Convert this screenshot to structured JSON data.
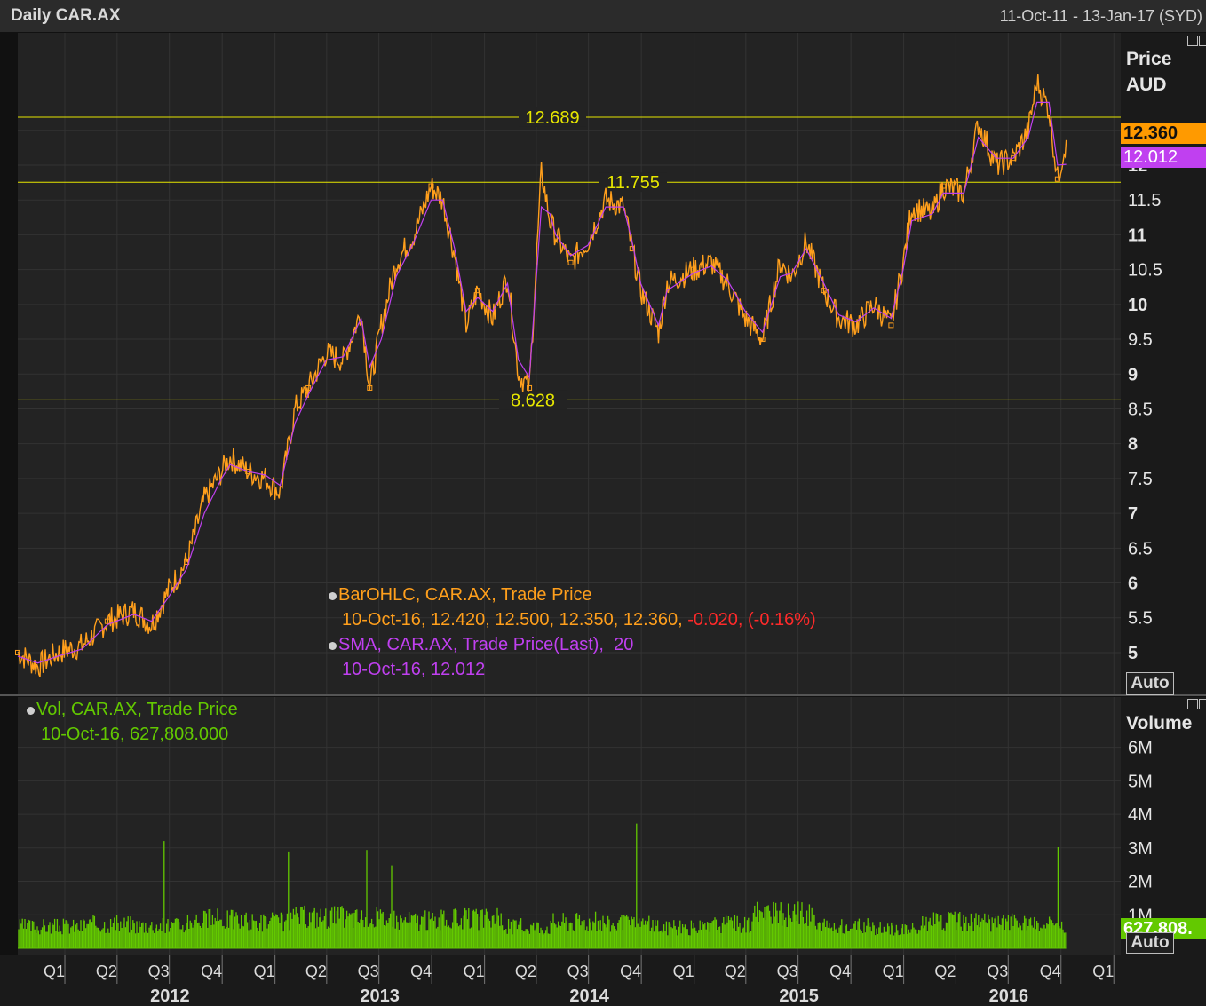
{
  "header": {
    "title": "Daily CAR.AX",
    "range": "11-Oct-11 - 13-Jan-17 (SYD)"
  },
  "colors": {
    "price": "#ff9f1c",
    "sma": "#c040f0",
    "volume": "#63c900",
    "hline": "#e6e600",
    "down": "#ff2a2a"
  },
  "price_axis": {
    "title_line1": "Price",
    "title_line2": "AUD",
    "auto_label": "Auto",
    "last_price_tag": "12.360",
    "sma_tag": "12.012"
  },
  "volume_axis": {
    "title": "Volume",
    "auto_label": "Auto",
    "last_volume_tag": "627,808."
  },
  "legend": {
    "ohlc_title": "BarOHLC, CAR.AX, Trade Price",
    "ohlc_values": "10-Oct-16, 12.420, 12.500, 12.350, 12.360, ",
    "ohlc_change": "-0.020, (-0.16%)",
    "sma_title": "SMA, CAR.AX, Trade Price(Last),  20",
    "sma_values": "10-Oct-16, 12.012",
    "vol_title": "Vol, CAR.AX, Trade Price",
    "vol_values": "10-Oct-16, 627,808.000"
  },
  "chart_data": [
    {
      "type": "line",
      "title": "Daily CAR.AX",
      "ylabel": "Price AUD",
      "ylim": [
        4.4,
        13.9
      ],
      "yticks": [
        "5",
        "5.5",
        "6",
        "6.5",
        "7",
        "7.5",
        "8",
        "8.5",
        "9",
        "9.5",
        "10",
        "10.5",
        "11",
        "11.5",
        "12",
        "12.5"
      ],
      "horizontal_lines": [
        {
          "value": 12.689,
          "label": "12.689"
        },
        {
          "value": 11.755,
          "label": "11.755"
        },
        {
          "value": 8.628,
          "label": "8.628"
        }
      ],
      "x_quarters": [
        "Q1",
        "Q2",
        "Q3",
        "Q4",
        "Q1",
        "Q2",
        "Q3",
        "Q4",
        "Q1",
        "Q2",
        "Q3",
        "Q4",
        "Q1",
        "Q2",
        "Q3",
        "Q4",
        "Q1",
        "Q2",
        "Q3",
        "Q4",
        "Q1"
      ],
      "x_years": [
        "2012",
        "2013",
        "2014",
        "2015",
        "2016"
      ],
      "series": [
        {
          "name": "BarOHLC, CAR.AX, Trade Price",
          "x": [
            "2011-10-11",
            "2011-11-15",
            "2011-12-20",
            "2012-01-31",
            "2012-03-15",
            "2012-04-30",
            "2012-05-31",
            "2012-06-30",
            "2012-07-31",
            "2012-08-31",
            "2012-09-30",
            "2012-10-15",
            "2012-11-15",
            "2012-12-15",
            "2013-01-10",
            "2013-02-05",
            "2013-02-28",
            "2013-03-31",
            "2013-04-30",
            "2013-05-31",
            "2013-06-15",
            "2013-07-05",
            "2013-07-31",
            "2013-08-31",
            "2013-09-30",
            "2013-10-20",
            "2013-11-10",
            "2013-11-30",
            "2013-12-20",
            "2014-01-15",
            "2014-02-10",
            "2014-03-01",
            "2014-03-20",
            "2014-04-10",
            "2014-04-25",
            "2014-05-05",
            "2014-05-31",
            "2014-06-30",
            "2014-07-31",
            "2014-08-31",
            "2014-09-15",
            "2014-09-30",
            "2014-10-31",
            "2014-11-15",
            "2014-12-31",
            "2015-01-31",
            "2015-02-28",
            "2015-03-31",
            "2015-04-30",
            "2015-05-31",
            "2015-06-20",
            "2015-07-15",
            "2015-08-15",
            "2015-09-10",
            "2015-10-10",
            "2015-11-10",
            "2015-12-10",
            "2015-12-31",
            "2016-01-15",
            "2016-02-20",
            "2016-03-10",
            "2016-04-15",
            "2016-05-10",
            "2016-06-10",
            "2016-07-10",
            "2016-08-05",
            "2016-08-20",
            "2016-09-10",
            "2016-09-25",
            "2016-10-10"
          ],
          "values": [
            5.0,
            4.8,
            5.0,
            5.1,
            5.45,
            5.6,
            5.4,
            5.9,
            6.3,
            7.2,
            7.6,
            7.8,
            7.6,
            7.5,
            7.3,
            8.5,
            8.8,
            9.3,
            9.2,
            9.9,
            8.8,
            9.7,
            10.6,
            11.0,
            11.7,
            11.5,
            10.7,
            9.7,
            10.2,
            9.8,
            10.4,
            9.0,
            8.8,
            11.9,
            11.2,
            11.0,
            10.6,
            10.9,
            11.5,
            11.4,
            10.8,
            10.2,
            9.6,
            10.3,
            10.5,
            10.6,
            10.3,
            9.8,
            9.5,
            10.6,
            10.4,
            10.9,
            10.2,
            9.8,
            9.7,
            10.0,
            9.7,
            10.6,
            11.4,
            11.3,
            11.7,
            11.6,
            12.6,
            12.0,
            12.1,
            12.5,
            13.2,
            12.8,
            11.8,
            12.36
          ]
        },
        {
          "name": "SMA, CAR.AX, Trade Price(Last),  20",
          "x": [
            "2011-10-11",
            "2011-11-15",
            "2011-12-20",
            "2012-01-31",
            "2012-03-15",
            "2012-04-30",
            "2012-05-31",
            "2012-06-30",
            "2012-07-31",
            "2012-08-31",
            "2012-09-30",
            "2012-10-15",
            "2012-11-15",
            "2012-12-15",
            "2013-01-10",
            "2013-02-05",
            "2013-02-28",
            "2013-03-31",
            "2013-04-30",
            "2013-05-31",
            "2013-06-15",
            "2013-07-05",
            "2013-07-31",
            "2013-08-31",
            "2013-09-30",
            "2013-10-20",
            "2013-11-10",
            "2013-11-30",
            "2013-12-20",
            "2014-01-15",
            "2014-02-10",
            "2014-03-01",
            "2014-03-20",
            "2014-04-10",
            "2014-04-25",
            "2014-05-05",
            "2014-05-31",
            "2014-06-30",
            "2014-07-31",
            "2014-08-31",
            "2014-09-15",
            "2014-09-30",
            "2014-10-31",
            "2014-11-15",
            "2014-12-31",
            "2015-01-31",
            "2015-02-28",
            "2015-03-31",
            "2015-04-30",
            "2015-05-31",
            "2015-06-20",
            "2015-07-15",
            "2015-08-15",
            "2015-09-10",
            "2015-10-10",
            "2015-11-10",
            "2015-12-10",
            "2015-12-31",
            "2016-01-15",
            "2016-02-20",
            "2016-03-10",
            "2016-04-15",
            "2016-05-10",
            "2016-06-10",
            "2016-07-10",
            "2016-08-05",
            "2016-08-20",
            "2016-09-10",
            "2016-09-25",
            "2016-10-10"
          ],
          "values": [
            4.95,
            4.85,
            4.95,
            5.05,
            5.4,
            5.55,
            5.45,
            5.8,
            6.2,
            7.0,
            7.5,
            7.7,
            7.6,
            7.55,
            7.4,
            8.3,
            8.7,
            9.2,
            9.25,
            9.8,
            9.1,
            9.5,
            10.4,
            10.9,
            11.5,
            11.5,
            10.8,
            9.9,
            10.1,
            9.9,
            10.3,
            9.2,
            8.95,
            11.4,
            11.3,
            11.0,
            10.7,
            10.85,
            11.4,
            11.4,
            10.9,
            10.3,
            9.7,
            10.2,
            10.45,
            10.55,
            10.35,
            9.9,
            9.6,
            10.4,
            10.45,
            10.8,
            10.3,
            9.85,
            9.75,
            9.95,
            9.8,
            10.5,
            11.2,
            11.3,
            11.6,
            11.6,
            12.4,
            12.1,
            12.1,
            12.4,
            12.9,
            12.9,
            12.0,
            12.012
          ]
        }
      ]
    },
    {
      "type": "bar",
      "title": "Vol, CAR.AX, Trade Price",
      "ylabel": "Volume",
      "ylim": [
        0,
        7500000
      ],
      "yticks": [
        "1M",
        "2M",
        "3M",
        "4M",
        "5M",
        "6M"
      ],
      "series": [
        {
          "name": "Vol, CAR.AX, Trade Price",
          "x": [
            "2011-10-11",
            "2012-01-31",
            "2012-04-30",
            "2012-07-31",
            "2012-10-31",
            "2013-01-31",
            "2013-04-30",
            "2013-07-31",
            "2013-10-31",
            "2014-01-31",
            "2014-04-30",
            "2014-07-31",
            "2014-10-31",
            "2015-01-31",
            "2015-04-10",
            "2015-07-31",
            "2015-10-31",
            "2016-01-31",
            "2016-04-30",
            "2016-07-31",
            "2016-10-10"
          ],
          "values": [
            900000,
            1000000,
            950000,
            1200000,
            1100000,
            1300000,
            1250000,
            1150000,
            1200000,
            900000,
            1100000,
            1000000,
            850000,
            1000000,
            1400000,
            900000,
            800000,
            1100000,
            1050000,
            950000,
            627808
          ]
        }
      ]
    }
  ]
}
